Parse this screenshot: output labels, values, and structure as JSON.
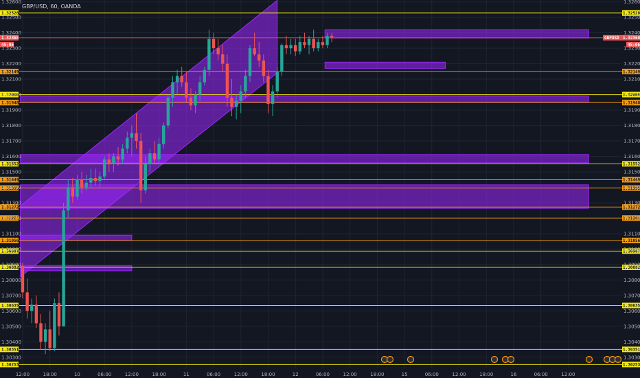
{
  "header": {
    "title": "GBP/USD, 60, OANDA"
  },
  "colors": {
    "background": "#131722",
    "grid": "#1f2433",
    "up": "#26a69a",
    "down": "#ef5350",
    "zone": "#9c27ff",
    "level_yellow": "#f5e90e",
    "level_orange": "#f59c12",
    "price_tag": "#ef5350"
  },
  "price_tag": {
    "symbol": "GBPUSD",
    "price": "1.32368",
    "countdown": "45:06"
  },
  "chart_data": {
    "type": "candlestick",
    "instrument": "GBP/USD",
    "timeframe": "60",
    "source": "OANDA",
    "ylim": [
      1.30228,
      1.32612
    ],
    "y_ticks": [
      "1.32600",
      "1.32500",
      "1.32400",
      "1.32300",
      "1.32200",
      "1.32100",
      "1.32000",
      "1.31900",
      "1.31800",
      "1.31700",
      "1.31600",
      "1.31500",
      "1.31400",
      "1.31300",
      "1.31200",
      "1.31100",
      "1.31000",
      "1.30900",
      "1.30800",
      "1.30700",
      "1.30600",
      "1.30500",
      "1.30400",
      "1.30300"
    ],
    "x_ticks": [
      {
        "label": "12:00",
        "i": 0
      },
      {
        "label": "18:00",
        "i": 6
      },
      {
        "label": "10",
        "i": 12
      },
      {
        "label": "06:00",
        "i": 18
      },
      {
        "label": "12:00",
        "i": 24
      },
      {
        "label": "18:00",
        "i": 30
      },
      {
        "label": "11",
        "i": 36
      },
      {
        "label": "06:00",
        "i": 42
      },
      {
        "label": "12:00",
        "i": 48
      },
      {
        "label": "18:00",
        "i": 54
      },
      {
        "label": "12",
        "i": 60
      },
      {
        "label": "06:00",
        "i": 66
      },
      {
        "label": "12:00",
        "i": 72
      },
      {
        "label": "18:00",
        "i": 78
      },
      {
        "label": "15",
        "i": 84
      },
      {
        "label": "06:00",
        "i": 90
      },
      {
        "label": "12:00",
        "i": 96
      },
      {
        "label": "18:00",
        "i": 102
      },
      {
        "label": "16",
        "i": 108
      },
      {
        "label": "06:00",
        "i": 114
      },
      {
        "label": "12:00",
        "i": 120
      }
    ],
    "candles": [
      [
        1.3089,
        1.3091,
        1.3068,
        1.3072
      ],
      [
        1.3072,
        1.3081,
        1.3055,
        1.306
      ],
      [
        1.306,
        1.3068,
        1.3052,
        1.3064
      ],
      [
        1.3064,
        1.307,
        1.3049,
        1.3052
      ],
      [
        1.3052,
        1.3058,
        1.3035,
        1.304
      ],
      [
        1.304,
        1.3052,
        1.3032,
        1.3048
      ],
      [
        1.3048,
        1.306,
        1.3034,
        1.3036
      ],
      [
        1.3036,
        1.3068,
        1.3034,
        1.3065
      ],
      [
        1.3065,
        1.3072,
        1.3044,
        1.305
      ],
      [
        1.305,
        1.313,
        1.305,
        1.3125
      ],
      [
        1.3125,
        1.3145,
        1.312,
        1.314
      ],
      [
        1.314,
        1.3146,
        1.313,
        1.3134
      ],
      [
        1.3134,
        1.3148,
        1.3132,
        1.3145
      ],
      [
        1.3145,
        1.315,
        1.3136,
        1.314
      ],
      [
        1.314,
        1.3148,
        1.3138,
        1.3143
      ],
      [
        1.3143,
        1.3152,
        1.314,
        1.3146
      ],
      [
        1.3146,
        1.3152,
        1.3141,
        1.3144
      ],
      [
        1.3144,
        1.315,
        1.314,
        1.3147
      ],
      [
        1.3147,
        1.316,
        1.3145,
        1.3158
      ],
      [
        1.3158,
        1.3162,
        1.315,
        1.3155
      ],
      [
        1.3155,
        1.3162,
        1.315,
        1.316
      ],
      [
        1.316,
        1.3166,
        1.3154,
        1.3158
      ],
      [
        1.3158,
        1.3168,
        1.3155,
        1.3165
      ],
      [
        1.3165,
        1.3176,
        1.3162,
        1.3172
      ],
      [
        1.3172,
        1.318,
        1.316,
        1.3175
      ],
      [
        1.3175,
        1.3188,
        1.3165,
        1.317
      ],
      [
        1.317,
        1.3175,
        1.313,
        1.3138
      ],
      [
        1.3138,
        1.316,
        1.3136,
        1.3155
      ],
      [
        1.3155,
        1.3165,
        1.315,
        1.3162
      ],
      [
        1.3162,
        1.317,
        1.3155,
        1.3158
      ],
      [
        1.3158,
        1.3172,
        1.3156,
        1.3168
      ],
      [
        1.3168,
        1.3182,
        1.3165,
        1.318
      ],
      [
        1.318,
        1.32,
        1.3178,
        1.3198
      ],
      [
        1.3198,
        1.3212,
        1.3192,
        1.3208
      ],
      [
        1.3208,
        1.3216,
        1.32,
        1.3212
      ],
      [
        1.3212,
        1.3218,
        1.3205,
        1.3208
      ],
      [
        1.3208,
        1.3215,
        1.3195,
        1.3198
      ],
      [
        1.3198,
        1.3204,
        1.319,
        1.3193
      ],
      [
        1.3193,
        1.3202,
        1.3188,
        1.32
      ],
      [
        1.32,
        1.3212,
        1.3196,
        1.3208
      ],
      [
        1.3208,
        1.3218,
        1.3206,
        1.3216
      ],
      [
        1.3216,
        1.3242,
        1.3212,
        1.3236
      ],
      [
        1.3236,
        1.324,
        1.3226,
        1.323
      ],
      [
        1.323,
        1.3236,
        1.3222,
        1.3226
      ],
      [
        1.3226,
        1.3232,
        1.3215,
        1.322
      ],
      [
        1.322,
        1.3226,
        1.3192,
        1.3198
      ],
      [
        1.3198,
        1.321,
        1.3186,
        1.3192
      ],
      [
        1.3192,
        1.32,
        1.3184,
        1.3196
      ],
      [
        1.3196,
        1.3206,
        1.3188,
        1.3202
      ],
      [
        1.3202,
        1.3216,
        1.3198,
        1.3212
      ],
      [
        1.3212,
        1.3232,
        1.3208,
        1.323
      ],
      [
        1.323,
        1.324,
        1.3225,
        1.3226
      ],
      [
        1.3226,
        1.3234,
        1.3218,
        1.3222
      ],
      [
        1.3222,
        1.3226,
        1.3208,
        1.3212
      ],
      [
        1.3212,
        1.3216,
        1.3188,
        1.3194
      ],
      [
        1.3194,
        1.3206,
        1.3186,
        1.3202
      ],
      [
        1.3202,
        1.3218,
        1.3198,
        1.3215
      ],
      [
        1.3215,
        1.3233,
        1.3212,
        1.3232
      ],
      [
        1.3232,
        1.3238,
        1.3226,
        1.323
      ],
      [
        1.323,
        1.3236,
        1.3226,
        1.3232
      ],
      [
        1.3232,
        1.3236,
        1.3225,
        1.3228
      ],
      [
        1.3228,
        1.3238,
        1.3226,
        1.3234
      ],
      [
        1.3234,
        1.324,
        1.323,
        1.3232
      ],
      [
        1.3232,
        1.3238,
        1.3226,
        1.3236
      ],
      [
        1.3236,
        1.3242,
        1.3228,
        1.323
      ],
      [
        1.323,
        1.3236,
        1.3228,
        1.3234
      ],
      [
        1.3234,
        1.3238,
        1.323,
        1.3232
      ],
      [
        1.3232,
        1.324,
        1.323,
        1.3238
      ],
      [
        1.3238,
        1.324,
        1.3234,
        1.3237
      ]
    ],
    "levels": [
      {
        "price": "1.32528",
        "value": 1.32528,
        "color": "yellow"
      },
      {
        "price": "1.32368",
        "value": 1.32368,
        "color": "red"
      },
      {
        "price": "1.32149",
        "value": 1.32149,
        "color": "orange"
      },
      {
        "price": "1.32000",
        "value": 1.32,
        "color": "yellow"
      },
      {
        "price": "1.31948",
        "value": 1.31948,
        "color": "orange"
      },
      {
        "price": "1.31552",
        "value": 1.31552,
        "color": "yellow"
      },
      {
        "price": "1.31449",
        "value": 1.31449,
        "color": "orange"
      },
      {
        "price": "1.31395",
        "value": 1.31395,
        "color": "orange"
      },
      {
        "price": "1.31272",
        "value": 1.31272,
        "color": "orange"
      },
      {
        "price": "1.31201",
        "value": 1.31201,
        "color": "orange"
      },
      {
        "price": "1.31056",
        "value": 1.31056,
        "color": "orange"
      },
      {
        "price": "1.30987",
        "value": 1.30987,
        "color": "yellow"
      },
      {
        "price": "1.30882",
        "value": 1.30882,
        "color": "yellow"
      },
      {
        "price": "1.30635",
        "value": 1.30635,
        "color": "yellow"
      },
      {
        "price": "1.30351",
        "value": 1.30351,
        "color": "yellow"
      },
      {
        "price": "1.30253",
        "value": 1.30253,
        "color": "yellow"
      }
    ],
    "zones": [
      {
        "i0": 66.5,
        "i1": 124.5,
        "top": 1.3242,
        "bottom": 1.32366
      },
      {
        "i0": 66.5,
        "i1": 93,
        "top": 1.3221,
        "bottom": 1.3217
      },
      {
        "i0": -0.5,
        "i1": 124.5,
        "top": 1.3199,
        "bottom": 1.3195
      },
      {
        "i0": -0.5,
        "i1": 124.5,
        "top": 1.31612,
        "bottom": 1.31558
      },
      {
        "i0": -0.5,
        "i1": 124.5,
        "top": 1.31416,
        "bottom": 1.31264
      },
      {
        "i0": -0.5,
        "i1": 24,
        "top": 1.3109,
        "bottom": 1.31055
      },
      {
        "i0": -0.5,
        "i1": 24,
        "top": 1.30892,
        "bottom": 1.3086
      }
    ],
    "channel": {
      "lower": [
        [
          -0.5,
          1.3082
        ],
        [
          56,
          1.3214
        ]
      ],
      "upper": [
        [
          -0.5,
          1.3128
        ],
        [
          56,
          1.3261
        ]
      ]
    },
    "grid": true
  }
}
